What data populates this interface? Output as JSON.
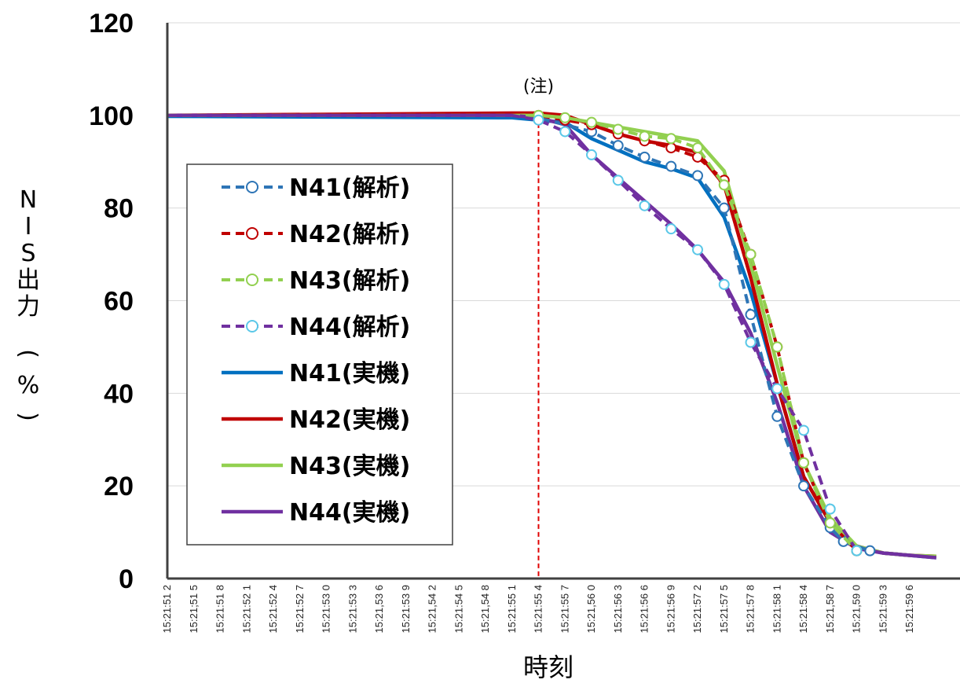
{
  "chart_data": {
    "type": "line",
    "title": "",
    "xlabel": "時刻",
    "ylabel": "NIS出力(%)",
    "ylim": [
      0,
      120
    ],
    "yticks": [
      "0",
      "20",
      "40",
      "60",
      "80",
      "100",
      "120"
    ],
    "grid": "horizontal",
    "legend_position": "left",
    "categories": [
      "15:21:51 2",
      "15:21:51 5",
      "15:21:51 8",
      "15:21:52 1",
      "15:21:52 4",
      "15:21:52 7",
      "15:21:53 0",
      "15:21:53 3",
      "15:21:53 6",
      "15:21:53 9",
      "15:21:54 2",
      "15:21:54 5",
      "15:21:54 8",
      "15:21:55 1",
      "15:21:55 4",
      "15:21:55 7",
      "15:21:56 0",
      "15:21:56 3",
      "15:21:56 6",
      "15:21:56 9",
      "15:21:57 2",
      "15:21:57 5",
      "15:21:57 8",
      "15:21:58 1",
      "15:21:58 4",
      "15:21:58 7",
      "15:21:59 0",
      "15:21:59 3",
      "15:21:59 6"
    ],
    "tick_labels": [
      "15:21:51 2",
      "15:21;51 5",
      "15:21:51 8",
      "15:21:52 1",
      "15:21:52 4",
      "15:21:52 7",
      "15:21:53 0",
      "15:21:53 3",
      "15:21,53 6",
      "15:21:53 9",
      "15:21,54 2",
      "15:21:54 5",
      "15:21,54 8",
      "15:21:55 1",
      "15:21:55 4",
      "15:21:55 7",
      "15:21,56 0",
      "15:21:56 3",
      "15:21:56 6",
      "15:21:56 9",
      "15:21:57 2",
      "15:21:57 5",
      "15:21:57 8",
      "15:21:58 1",
      "15:21:58 4",
      "15:21,58 7",
      "15:21,59 0",
      "15:21:59 3",
      "15:21:59 6"
    ],
    "annotation": {
      "label": "(注)",
      "x": "15:21:55 4"
    },
    "series": [
      {
        "name": "N41(解析)",
        "color": "#2e75b6",
        "style": "dash",
        "marker": "circle",
        "x": [
          0,
          13,
          14,
          16,
          17,
          18,
          19,
          20,
          21,
          22,
          23,
          24,
          25,
          25.5,
          26.5
        ],
        "y": [
          100,
          100,
          99.5,
          96.5,
          93.5,
          91,
          89,
          87,
          80,
          57,
          35,
          20,
          11,
          8,
          6
        ]
      },
      {
        "name": "N42(解析)",
        "color": "#c00000",
        "style": "dash",
        "marker": "circle",
        "x": [
          0,
          13,
          14,
          15,
          16,
          17,
          18,
          19,
          20,
          21,
          22,
          23,
          24,
          25,
          26
        ],
        "y": [
          100,
          100,
          100,
          99,
          98,
          96,
          94.5,
          93,
          91,
          86,
          70,
          50,
          25,
          12,
          6
        ]
      },
      {
        "name": "N43(解析)",
        "color": "#92d050",
        "style": "dash",
        "marker": "circle",
        "x": [
          0,
          13,
          14,
          15,
          16,
          17,
          18,
          19,
          20,
          21,
          22,
          23,
          24,
          25,
          26
        ],
        "y": [
          100,
          100,
          100,
          99.5,
          98.5,
          97,
          95.5,
          95,
          93,
          85,
          70,
          50,
          25,
          12,
          6
        ]
      },
      {
        "name": "N44(解析)",
        "color": "#7030a0",
        "style": "dash",
        "marker": "circle",
        "x": [
          0,
          13,
          14,
          15,
          16,
          17,
          18,
          19,
          20,
          21,
          22,
          23,
          24,
          25,
          26
        ],
        "y": [
          100,
          100,
          99,
          96.5,
          91.5,
          86,
          80.5,
          75.5,
          71,
          63.5,
          51,
          41,
          32,
          15,
          6
        ]
      },
      {
        "name": "N41(実機)",
        "color": "#0070c0",
        "style": "solid",
        "x": [
          0,
          13,
          14,
          15,
          16,
          17,
          18,
          19,
          20,
          21,
          22,
          23,
          24,
          25,
          26,
          27,
          28,
          29
        ],
        "y": [
          99.8,
          99.5,
          99,
          98.5,
          95,
          92.5,
          90,
          88.5,
          86.5,
          78,
          62,
          42,
          22,
          12,
          7,
          5.5,
          5,
          4.5
        ]
      },
      {
        "name": "N42(実機)",
        "color": "#c00000",
        "style": "solid",
        "x": [
          0,
          13,
          14,
          15,
          16,
          17,
          18,
          19,
          20,
          21,
          22,
          23,
          24,
          25,
          26,
          27,
          28,
          29
        ],
        "y": [
          100,
          100.5,
          100.5,
          100,
          98,
          96,
          94.5,
          93.5,
          92,
          85,
          65,
          42,
          22,
          12,
          7,
          5.5,
          5,
          4.8
        ]
      },
      {
        "name": "N43(実機)",
        "color": "#92d050",
        "style": "solid",
        "x": [
          0,
          13,
          14,
          15,
          16,
          17,
          18,
          19,
          20,
          21,
          22,
          23,
          24,
          25,
          26,
          27,
          28,
          29
        ],
        "y": [
          100,
          100,
          100,
          99.5,
          98.5,
          97.5,
          96.5,
          95.5,
          94.5,
          88,
          68,
          46,
          25,
          13,
          7,
          5.5,
          5,
          4.8
        ]
      },
      {
        "name": "N44(実機)",
        "color": "#7030a0",
        "style": "solid",
        "x": [
          0,
          13,
          14,
          15,
          16,
          17,
          18,
          19,
          20,
          21,
          22,
          23,
          24,
          25,
          26,
          27,
          28,
          29
        ],
        "y": [
          100,
          100,
          99.5,
          98,
          91.5,
          86.5,
          81.5,
          76.5,
          71,
          64,
          53,
          38,
          20,
          10,
          6.5,
          5.5,
          5,
          4.5
        ]
      }
    ]
  }
}
